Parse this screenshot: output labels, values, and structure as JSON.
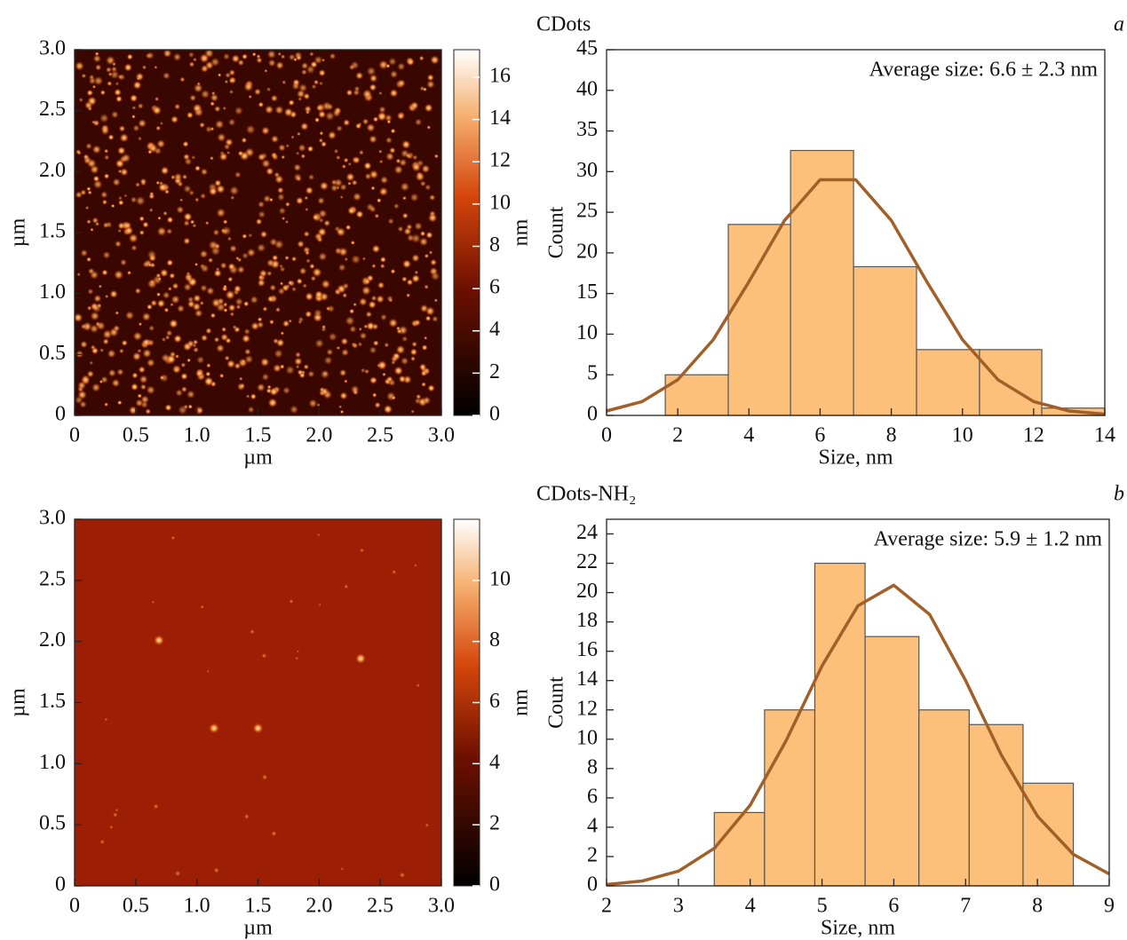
{
  "chart_data": [
    {
      "type": "image",
      "xlabel": "µm",
      "ylabel": "µm",
      "xlim": [
        0,
        3
      ],
      "ylim": [
        0,
        3
      ],
      "xticks": [
        0,
        0.5,
        {
          "value": 1,
          "label": "1.0"
        },
        1.5,
        {
          "value": 2,
          "label": "2.0"
        },
        2.5,
        {
          "value": 3,
          "label": "3.0"
        }
      ],
      "yticks": [
        0,
        0.5,
        {
          "value": 1,
          "label": "1.0"
        },
        1.5,
        {
          "value": 2,
          "label": "2.0"
        },
        2.5,
        {
          "value": 3,
          "label": "3.0"
        }
      ],
      "colorbar_label": "nm",
      "colorbar_lim": [
        0,
        17.3
      ],
      "colorbar_ticks": [
        0,
        2,
        4,
        6,
        8,
        10,
        12,
        14,
        16
      ],
      "background": "#3a0700"
    },
    {
      "type": "histogram",
      "title": "CDots",
      "panel": "a",
      "annotation": "Average size: 6.6 ± 2.3 nm",
      "xlabel": "Size, nm",
      "ylabel": "Count",
      "xlim": [
        0,
        14
      ],
      "ylim": [
        0,
        45
      ],
      "xticks": [
        0,
        2,
        4,
        6,
        8,
        10,
        12,
        14
      ],
      "yticks": [
        0,
        5,
        10,
        15,
        20,
        25,
        30,
        35,
        40,
        45
      ],
      "bins": [
        1.65,
        3.42,
        5.17,
        6.94,
        8.71,
        10.48,
        12.23,
        14.0
      ],
      "values": [
        5,
        23.5,
        32.6,
        18.3,
        8.1,
        8.1,
        0.9
      ],
      "color": "#fcc07a",
      "fit": {
        "color": "#a25f27",
        "x": [
          0,
          1,
          2,
          3,
          4,
          5,
          6,
          7,
          8,
          9,
          10,
          11,
          12,
          13,
          14
        ],
        "values": [
          0.55,
          1.7,
          4.38,
          9.33,
          16.45,
          24.0,
          29.0,
          29.0,
          24.0,
          16.45,
          9.33,
          4.38,
          1.7,
          0.55,
          0.15
        ]
      }
    },
    {
      "type": "image",
      "xlabel": "µm",
      "ylabel": "µm",
      "xlim": [
        0,
        3
      ],
      "ylim": [
        0,
        3
      ],
      "xticks": [
        0,
        0.5,
        {
          "value": 1,
          "label": "1.0"
        },
        1.5,
        {
          "value": 2,
          "label": "2.0"
        },
        2.5,
        {
          "value": 3,
          "label": "3.0"
        }
      ],
      "yticks": [
        0,
        0.5,
        {
          "value": 1,
          "label": "1.0"
        },
        1.5,
        {
          "value": 2,
          "label": "2.0"
        },
        2.5,
        {
          "value": 3,
          "label": "3.0"
        }
      ],
      "colorbar_label": "nm",
      "colorbar_lim": [
        0,
        12
      ],
      "colorbar_ticks": [
        0,
        2,
        4,
        6,
        8,
        10
      ],
      "background": "#9c1e05"
    },
    {
      "type": "histogram",
      "title": "CDots-NH₂",
      "panel": "b",
      "annotation": "Average size: 5.9 ± 1.2 nm",
      "xlabel": "Size, nm",
      "ylabel": "Count",
      "xlim": [
        2,
        9
      ],
      "ylim": [
        0,
        25
      ],
      "xticks": [
        2,
        3,
        4,
        5,
        6,
        7,
        8,
        9
      ],
      "yticks": [
        0,
        2,
        4,
        6,
        8,
        10,
        12,
        14,
        16,
        18,
        20,
        22,
        24
      ],
      "bins": [
        3.5,
        4.2,
        4.9,
        5.6,
        6.35,
        7.05,
        7.8,
        8.5
      ],
      "values": [
        5,
        12,
        22,
        17,
        12,
        11,
        7
      ],
      "color": "#fcc07a",
      "fit": {
        "color": "#a25f27",
        "x": [
          2,
          2.5,
          3,
          3.5,
          4,
          4.5,
          5,
          5.5,
          6,
          6.5,
          7,
          7.5,
          8,
          8.5,
          9
        ],
        "values": [
          0.09,
          0.33,
          1.0,
          2.56,
          5.5,
          9.9,
          15.0,
          19.1,
          20.5,
          18.5,
          14.0,
          8.9,
          4.76,
          2.15,
          0.81
        ]
      }
    }
  ]
}
